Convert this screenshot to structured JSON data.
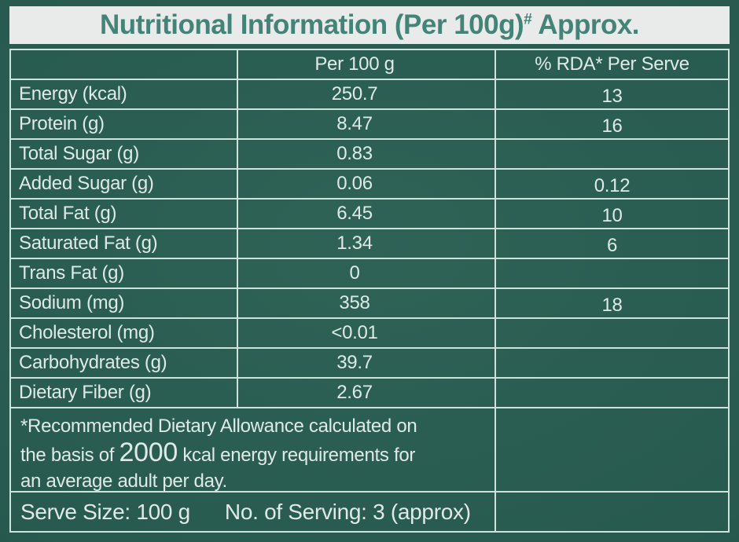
{
  "title": {
    "main": "Nutritional Information (Per 100g)",
    "superscript": "#",
    "suffix": " Approx."
  },
  "table": {
    "columns": [
      "",
      "Per 100 g",
      "% RDA* Per Serve"
    ],
    "rows": [
      {
        "label": "Energy (kcal)",
        "per_100g": "250.7",
        "rda": "13"
      },
      {
        "label": "Protein (g)",
        "per_100g": "8.47",
        "rda": "16"
      },
      {
        "label": "Total Sugar (g)",
        "per_100g": "0.83",
        "rda": ""
      },
      {
        "label": "Added Sugar (g)",
        "per_100g": "0.06",
        "rda": "0.12"
      },
      {
        "label": "Total Fat (g)",
        "per_100g": "6.45",
        "rda": "10"
      },
      {
        "label": "Saturated Fat (g)",
        "per_100g": "1.34",
        "rda": "6"
      },
      {
        "label": "Trans Fat (g)",
        "per_100g": "0",
        "rda": ""
      },
      {
        "label": "Sodium (mg)",
        "per_100g": "358",
        "rda": "18"
      },
      {
        "label": "Cholesterol (mg)",
        "per_100g": "<0.01",
        "rda": ""
      },
      {
        "label": "Carbohydrates (g)",
        "per_100g": "39.7",
        "rda": ""
      },
      {
        "label": "Dietary Fiber (g)",
        "per_100g": "2.67",
        "rda": ""
      }
    ]
  },
  "footnote": {
    "line1": "*Recommended Dietary Allowance calculated on",
    "line2_pre": "the basis of ",
    "line2_big": "2000",
    "line2_post": " kcal energy requirements for",
    "line3": "an average adult per day."
  },
  "serving": {
    "serve_size": "Serve Size: 100 g",
    "servings": "No. of Serving: 3 (approx)"
  },
  "colors": {
    "background": "#2e6356",
    "background_edge": "#1e4a40",
    "border": "#cde2db",
    "text": "#dfeae6",
    "title_bar_bg": "#e8ebe9",
    "title_text": "#448377"
  }
}
